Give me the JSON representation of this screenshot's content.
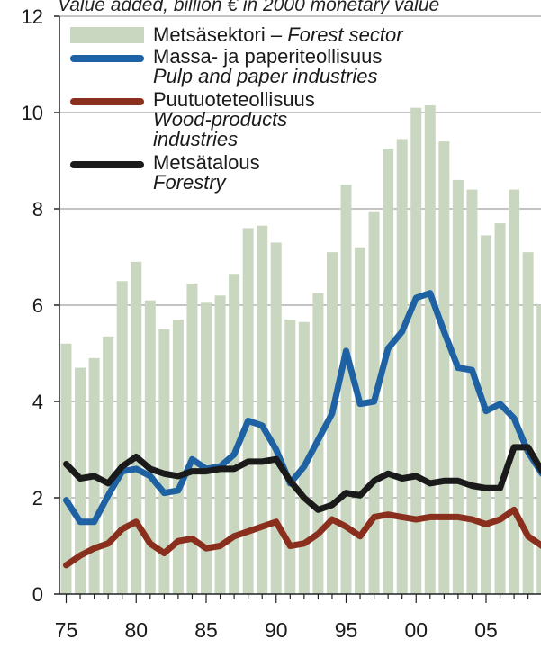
{
  "chart_data": {
    "type": "bar+line",
    "subtitle": "Value added, billion € in 2000 monetary value",
    "x": [
      1975,
      1976,
      1977,
      1978,
      1979,
      1980,
      1981,
      1982,
      1983,
      1984,
      1985,
      1986,
      1987,
      1988,
      1989,
      1990,
      1991,
      1992,
      1993,
      1994,
      1995,
      1996,
      1997,
      1998,
      1999,
      2000,
      2001,
      2002,
      2003,
      2004,
      2005,
      2006,
      2007,
      2008,
      2009
    ],
    "xticks": [
      {
        "value": 1975,
        "label": "75"
      },
      {
        "value": 1980,
        "label": "80"
      },
      {
        "value": 1985,
        "label": "85"
      },
      {
        "value": 1990,
        "label": "90"
      },
      {
        "value": 1995,
        "label": "95"
      },
      {
        "value": 2000,
        "label": "00"
      },
      {
        "value": 2005,
        "label": "05"
      }
    ],
    "yticks": [
      "0",
      "2",
      "4",
      "6",
      "8",
      "10",
      "12"
    ],
    "ylim": [
      0,
      12
    ],
    "grid": "horizontal",
    "legend_position": "top-left",
    "series": [
      {
        "name": "Metsäsektori",
        "name_en": "Forest sector",
        "kind": "bar",
        "color": "#c9d7c0",
        "values": [
          5.2,
          4.7,
          4.9,
          5.35,
          6.5,
          6.9,
          6.1,
          5.5,
          5.7,
          6.45,
          6.05,
          6.2,
          6.65,
          7.6,
          7.65,
          7.3,
          5.7,
          5.65,
          6.25,
          7.1,
          8.5,
          7.2,
          7.95,
          9.25,
          9.45,
          10.1,
          10.15,
          9.4,
          8.6,
          8.4,
          7.45,
          7.7,
          8.4,
          7.1,
          6.0
        ]
      },
      {
        "name": "Massa- ja paperiteollisuus",
        "name_en": "Pulp and paper industries",
        "kind": "line",
        "color": "#1f62a3",
        "values": [
          1.95,
          1.5,
          1.5,
          2.05,
          2.55,
          2.6,
          2.45,
          2.1,
          2.15,
          2.8,
          2.6,
          2.65,
          2.9,
          3.6,
          3.5,
          3.0,
          2.3,
          2.65,
          3.2,
          3.75,
          5.05,
          3.95,
          4.0,
          5.1,
          5.45,
          6.15,
          6.25,
          5.45,
          4.7,
          4.65,
          3.8,
          3.95,
          3.65,
          2.95,
          2.5
        ]
      },
      {
        "name": "Puutuoteteollisuus",
        "name_en": "Wood-products industries",
        "kind": "line",
        "color": "#8a2f1e",
        "values": [
          0.6,
          0.8,
          0.95,
          1.05,
          1.35,
          1.5,
          1.05,
          0.85,
          1.1,
          1.15,
          0.95,
          1.0,
          1.2,
          1.3,
          1.4,
          1.5,
          1.0,
          1.05,
          1.25,
          1.55,
          1.4,
          1.2,
          1.6,
          1.65,
          1.6,
          1.55,
          1.6,
          1.6,
          1.6,
          1.55,
          1.45,
          1.55,
          1.75,
          1.2,
          1.0
        ]
      },
      {
        "name": "Metsätalous",
        "name_en": "Forestry",
        "kind": "line",
        "color": "#1a1a1a",
        "values": [
          2.7,
          2.4,
          2.45,
          2.3,
          2.65,
          2.85,
          2.6,
          2.5,
          2.45,
          2.55,
          2.55,
          2.6,
          2.6,
          2.75,
          2.75,
          2.8,
          2.35,
          2.0,
          1.75,
          1.85,
          2.1,
          2.05,
          2.35,
          2.5,
          2.4,
          2.45,
          2.3,
          2.35,
          2.35,
          2.25,
          2.2,
          2.2,
          3.05,
          3.05,
          2.55
        ]
      }
    ],
    "legend": [
      {
        "label": "Metsäsektori",
        "separator": " – ",
        "label_en": "Forest sector"
      },
      {
        "label": "Massa- ja paperiteollisuus",
        "label_en": "Pulp and paper industries"
      },
      {
        "label": "Puutuoteteollisuus",
        "label_en": "Wood-products industries"
      },
      {
        "label": "Metsätalous",
        "label_en": "Forestry"
      }
    ]
  }
}
